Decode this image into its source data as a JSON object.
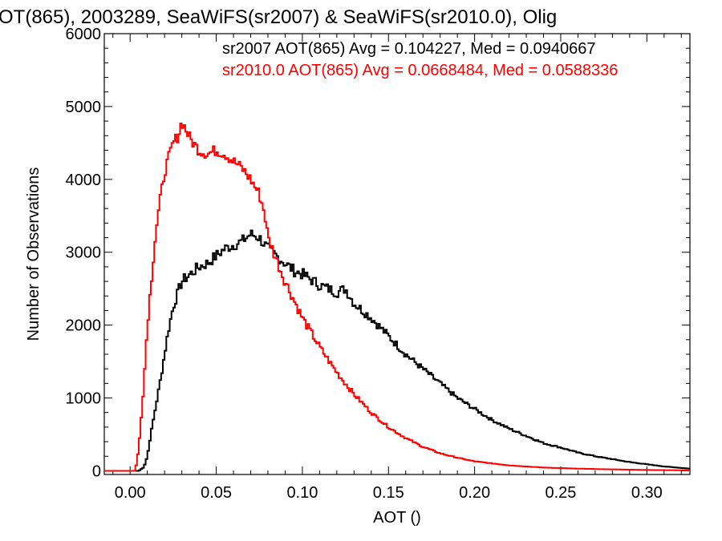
{
  "chart_data": {
    "type": "line",
    "title": "OT(865), 2003289, SeaWiFS(sr2007) & SeaWiFS(sr2010.0), Olig",
    "xlabel": "AOT ()",
    "ylabel": "Number of Observations",
    "xlim": [
      -0.015,
      0.325
    ],
    "ylim": [
      -50,
      6000
    ],
    "xticks": [
      "0.00",
      "0.05",
      "0.10",
      "0.15",
      "0.20",
      "0.25",
      "0.30"
    ],
    "xtick_values": [
      0.0,
      0.05,
      0.1,
      0.15,
      0.2,
      0.25,
      0.3
    ],
    "yticks": [
      "0",
      "1000",
      "2000",
      "3000",
      "4000",
      "5000",
      "6000"
    ],
    "ytick_values": [
      0,
      1000,
      2000,
      3000,
      4000,
      5000,
      6000
    ],
    "grid": false,
    "legend": "top-right",
    "annotations": [
      {
        "text": "sr2007 AOT(865) Avg = 0.104227, Med = 0.0940667",
        "color": "#000000"
      },
      {
        "text": "sr2010.0 AOT(865) Avg = 0.0668484, Med = 0.0588336",
        "color": "#ff0000"
      }
    ],
    "series": [
      {
        "color": "#000000",
        "x": [
          -0.015,
          0.005,
          0.008,
          0.01,
          0.012,
          0.015,
          0.018,
          0.02,
          0.022,
          0.025,
          0.03,
          0.035,
          0.04,
          0.045,
          0.05,
          0.055,
          0.06,
          0.065,
          0.07,
          0.075,
          0.08,
          0.085,
          0.09,
          0.095,
          0.1,
          0.11,
          0.12,
          0.125,
          0.13,
          0.14,
          0.15,
          0.16,
          0.17,
          0.18,
          0.19,
          0.2,
          0.21,
          0.22,
          0.23,
          0.24,
          0.25,
          0.26,
          0.27,
          0.28,
          0.29,
          0.3,
          0.31,
          0.32,
          0.325
        ],
        "y": [
          0,
          0,
          50,
          200,
          500,
          900,
          1300,
          1600,
          1900,
          2250,
          2600,
          2700,
          2800,
          2850,
          2950,
          3050,
          3100,
          3150,
          3250,
          3200,
          3050,
          2950,
          2850,
          2750,
          2700,
          2550,
          2450,
          2500,
          2300,
          2100,
          1850,
          1600,
          1400,
          1200,
          1000,
          850,
          700,
          580,
          480,
          380,
          320,
          250,
          200,
          160,
          120,
          90,
          60,
          40,
          30
        ]
      },
      {
        "color": "#ff0000",
        "x": [
          -0.015,
          0.003,
          0.005,
          0.008,
          0.01,
          0.013,
          0.015,
          0.018,
          0.02,
          0.025,
          0.028,
          0.03,
          0.035,
          0.04,
          0.045,
          0.05,
          0.055,
          0.06,
          0.065,
          0.07,
          0.075,
          0.078,
          0.08,
          0.085,
          0.09,
          0.095,
          0.1,
          0.11,
          0.12,
          0.13,
          0.14,
          0.15,
          0.16,
          0.17,
          0.18,
          0.19,
          0.2,
          0.22,
          0.24,
          0.26,
          0.28,
          0.3,
          0.32,
          0.325
        ],
        "y": [
          0,
          0,
          300,
          1200,
          2000,
          2800,
          3300,
          3800,
          4100,
          4500,
          4600,
          4800,
          4550,
          4400,
          4350,
          4400,
          4350,
          4250,
          4150,
          4000,
          3800,
          3550,
          3200,
          2900,
          2600,
          2350,
          2100,
          1700,
          1350,
          1050,
          800,
          600,
          450,
          330,
          240,
          180,
          130,
          75,
          45,
          30,
          20,
          12,
          8,
          5
        ]
      }
    ]
  }
}
